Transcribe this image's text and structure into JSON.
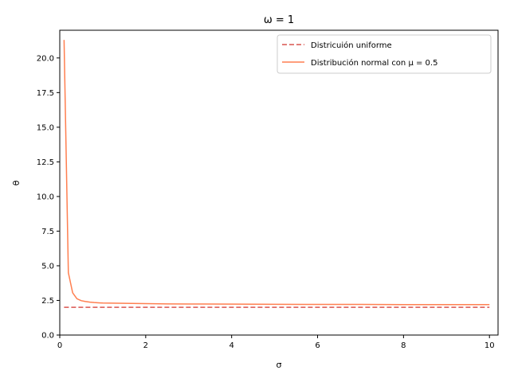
{
  "chart_data": {
    "type": "line",
    "title": "ω = 1",
    "xlabel": "σ",
    "ylabel": "θ",
    "xlim": [
      0,
      10.2
    ],
    "ylim": [
      0,
      22
    ],
    "x_ticks": [
      0,
      2,
      4,
      6,
      8,
      10
    ],
    "x_tick_labels": [
      "0",
      "2",
      "4",
      "6",
      "8",
      "10"
    ],
    "y_ticks": [
      0,
      2.5,
      5,
      7.5,
      10,
      12.5,
      15,
      17.5,
      20
    ],
    "y_tick_labels": [
      "0.0",
      "2.5",
      "5.0",
      "7.5",
      "10.0",
      "12.5",
      "15.0",
      "17.5",
      "20.0"
    ],
    "grid": false,
    "legend_position": "top-right",
    "series": [
      {
        "name": "Districuión uniforme",
        "style": "dashed",
        "color": "#d9534f",
        "x": [
          0.1,
          10
        ],
        "y": [
          2.0,
          2.0
        ]
      },
      {
        "name": "Distribución normal con μ = 0.5",
        "style": "solid",
        "color": "#ff7f50",
        "x": [
          0.1,
          0.2,
          0.3,
          0.4,
          0.5,
          0.6,
          0.7,
          0.8,
          0.9,
          1.0,
          1.5,
          2.0,
          2.5,
          3.0,
          4.0,
          5.0,
          6.0,
          7.0,
          8.0,
          9.0,
          10.0
        ],
        "y": [
          21.3,
          4.5,
          3.05,
          2.62,
          2.48,
          2.42,
          2.38,
          2.35,
          2.33,
          2.31,
          2.29,
          2.27,
          2.25,
          2.24,
          2.23,
          2.22,
          2.21,
          2.21,
          2.2,
          2.2,
          2.2
        ]
      }
    ]
  }
}
